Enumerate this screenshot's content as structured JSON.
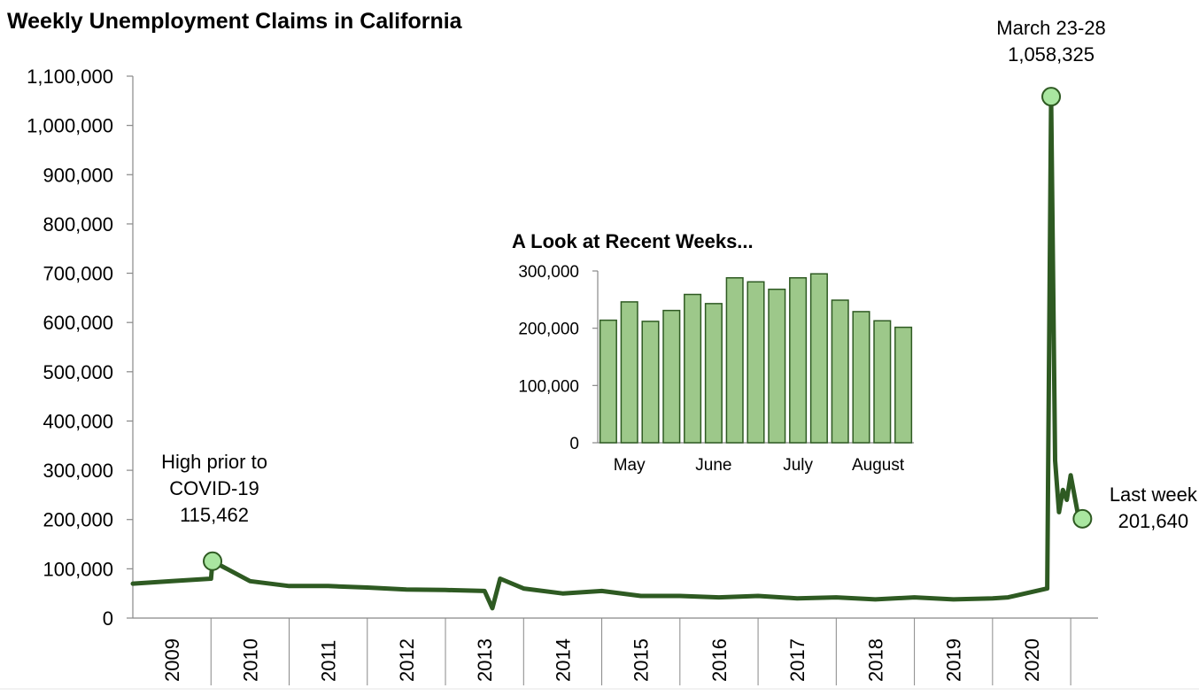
{
  "chart_data": [
    {
      "type": "line",
      "title": "Weekly Unemployment Claims in California",
      "xlabel": "",
      "ylabel": "",
      "ylim": [
        0,
        1100000
      ],
      "yticks": [
        "0",
        "100,000",
        "200,000",
        "300,000",
        "400,000",
        "500,000",
        "600,000",
        "700,000",
        "800,000",
        "900,000",
        "1,000,000",
        "1,100,000"
      ],
      "xticks": [
        "2009",
        "2010",
        "2011",
        "2012",
        "2013",
        "2014",
        "2015",
        "2016",
        "2017",
        "2018",
        "2019",
        "2020"
      ],
      "colors": {
        "line": "#2e5a22",
        "marker_fill": "#a9e6a0",
        "marker_stroke": "#2e5a22"
      },
      "series": [
        {
          "x": [
            2008.5,
            2009.0,
            2009.5,
            2009.52,
            2010.0,
            2010.5,
            2011.0,
            2011.5,
            2012.0,
            2012.5,
            2013.0,
            2013.1,
            2013.2,
            2013.5,
            2014.0,
            2014.5,
            2015.0,
            2015.5,
            2016.0,
            2016.5,
            2017.0,
            2017.5,
            2018.0,
            2018.5,
            2019.0,
            2019.5,
            2019.7,
            2020.2,
            2020.25,
            2020.3,
            2020.35,
            2020.4,
            2020.45,
            2020.5,
            2020.6,
            2020.65
          ],
          "values": [
            70000,
            75000,
            80000,
            115462,
            75000,
            65000,
            65000,
            62000,
            58000,
            57000,
            55000,
            20000,
            80000,
            60000,
            50000,
            55000,
            45000,
            45000,
            42000,
            45000,
            40000,
            42000,
            38000,
            42000,
            38000,
            40000,
            42000,
            60000,
            1058325,
            320000,
            215000,
            260000,
            240000,
            290000,
            205000,
            201640
          ]
        }
      ],
      "annotations": [
        {
          "lines": [
            "High prior to",
            "COVID-19",
            "115,462"
          ],
          "x": 2009.52,
          "y": 115462
        },
        {
          "lines": [
            "March 23-28",
            "1,058,325"
          ],
          "x": 2020.25,
          "y": 1058325
        },
        {
          "lines": [
            "Last week",
            "201,640"
          ],
          "x": 2020.65,
          "y": 201640
        }
      ]
    },
    {
      "type": "bar",
      "title": "A Look at Recent Weeks...",
      "ylim": [
        0,
        300000
      ],
      "yticks": [
        "0",
        "100,000",
        "200,000",
        "300,000"
      ],
      "month_labels": [
        "May",
        "June",
        "July",
        "August"
      ],
      "colors": {
        "bar_fill": "#9dc88a",
        "bar_stroke": "#2e5a22",
        "axis": "#888888"
      },
      "values": [
        214000,
        246000,
        212000,
        231000,
        259000,
        243000,
        288000,
        281000,
        268000,
        288000,
        295000,
        249000,
        229000,
        213000,
        201640
      ]
    }
  ]
}
